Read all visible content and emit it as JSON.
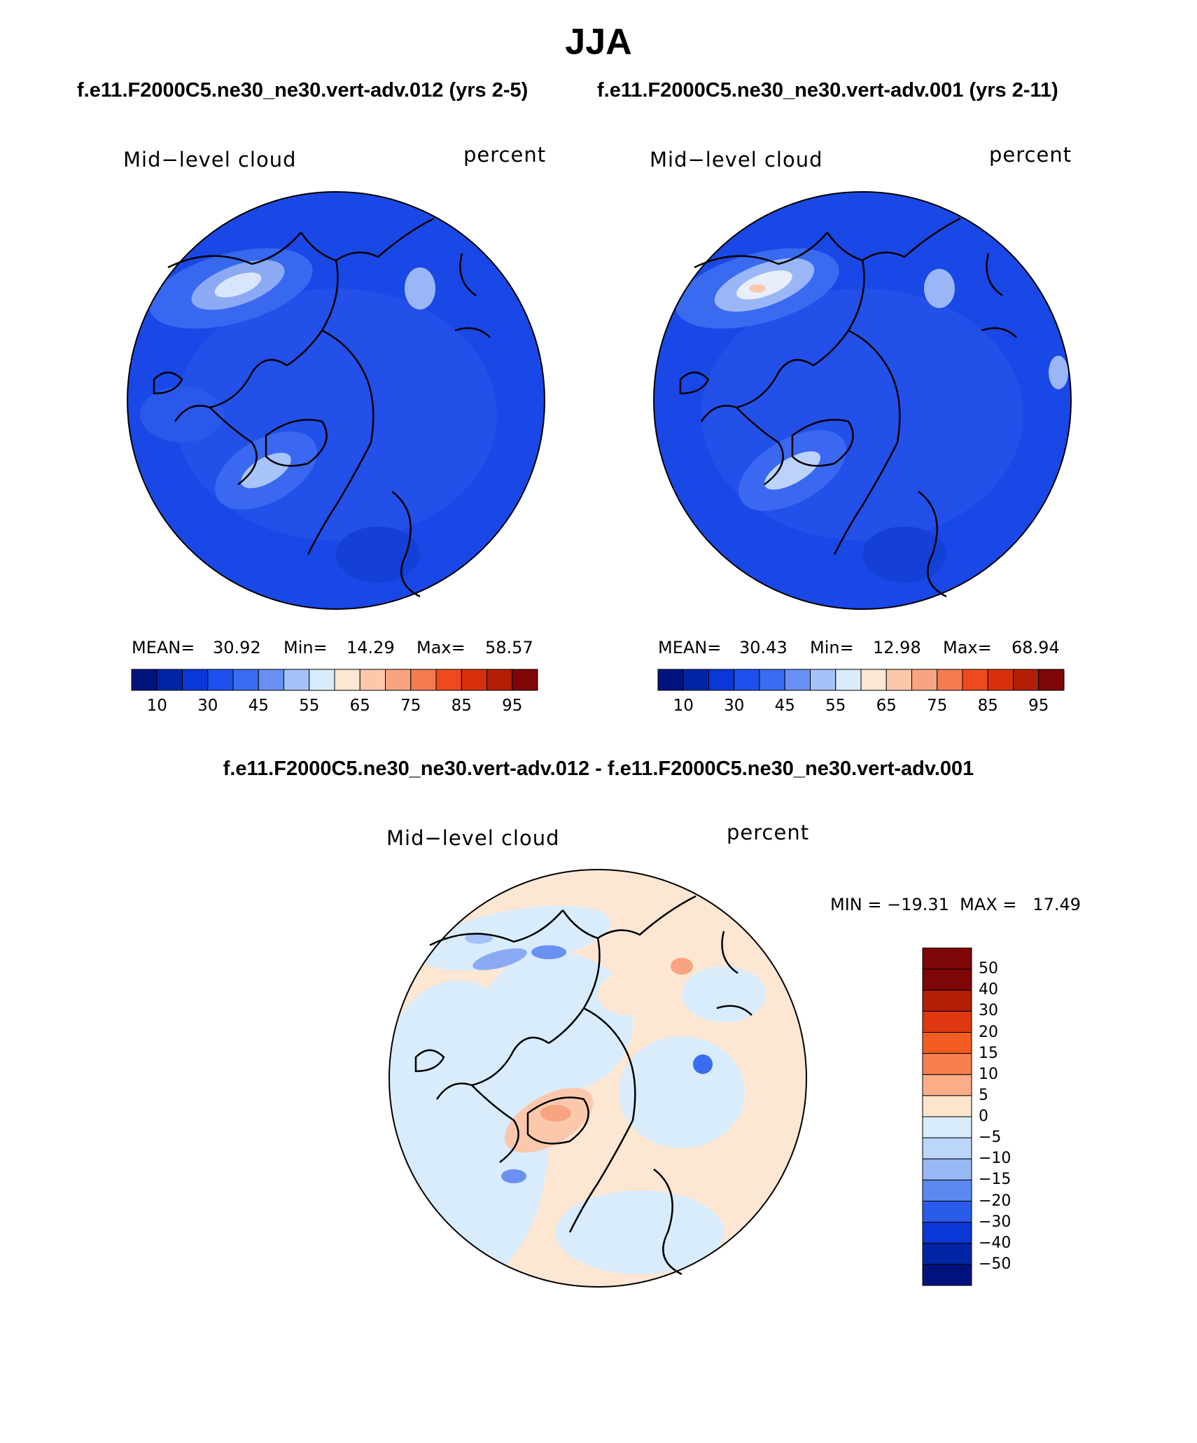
{
  "figure": {
    "title": "JJA",
    "panel_a_case": "f.e11.F2000C5.ne30_ne30.vert-adv.012 (yrs 2-5)",
    "panel_b_case": "f.e11.F2000C5.ne30_ne30.vert-adv.001 (yrs 2-11)",
    "diff_title": "f.e11.F2000C5.ne30_ne30.vert-adv.012 - f.e11.F2000C5.ne30_ne30.vert-adv.001"
  },
  "panel_a": {
    "variable": "Mid−level cloud",
    "units": "percent",
    "mean_label": "MEAN=",
    "mean": "30.92",
    "min_label": "Min=",
    "min": "14.29",
    "max_label": "Max=",
    "max": "58.57"
  },
  "panel_b": {
    "variable": "Mid−level cloud",
    "units": "percent",
    "mean_label": "MEAN=",
    "mean": "30.43",
    "min_label": "Min=",
    "min": "12.98",
    "max_label": "Max=",
    "max": "68.94"
  },
  "panel_diff": {
    "variable": "Mid−level cloud",
    "units": "percent",
    "minmax": "MIN = −19.31  MAX =   17.49"
  },
  "colorbar_abs": {
    "colors": [
      "#00137c",
      "#0026a6",
      "#0a38d6",
      "#1e50ee",
      "#3a6cf2",
      "#6890f4",
      "#a4c2f8",
      "#d8ecfc",
      "#fde6d2",
      "#fcc8ac",
      "#f8a480",
      "#f47a50",
      "#ef4a1e",
      "#d8300a",
      "#b21e06",
      "#7e0606"
    ],
    "tick_labels": [
      "10",
      "30",
      "45",
      "55",
      "65",
      "75",
      "85",
      "95"
    ]
  },
  "colorbar_diff": {
    "colors": [
      "#7e0606",
      "#b21e06",
      "#e03810",
      "#f45c22",
      "#f8804c",
      "#fcae88",
      "#fde4cc",
      "#d8ecfc",
      "#bcd6fa",
      "#98b8f6",
      "#5a88f0",
      "#2a5cea",
      "#0a38d6",
      "#0026a6",
      "#00137c"
    ],
    "tick_labels": [
      "50",
      "40",
      "30",
      "20",
      "15",
      "10",
      "5",
      "0",
      "−5",
      "−10",
      "−15",
      "−20",
      "−30",
      "−40",
      "−50"
    ]
  }
}
